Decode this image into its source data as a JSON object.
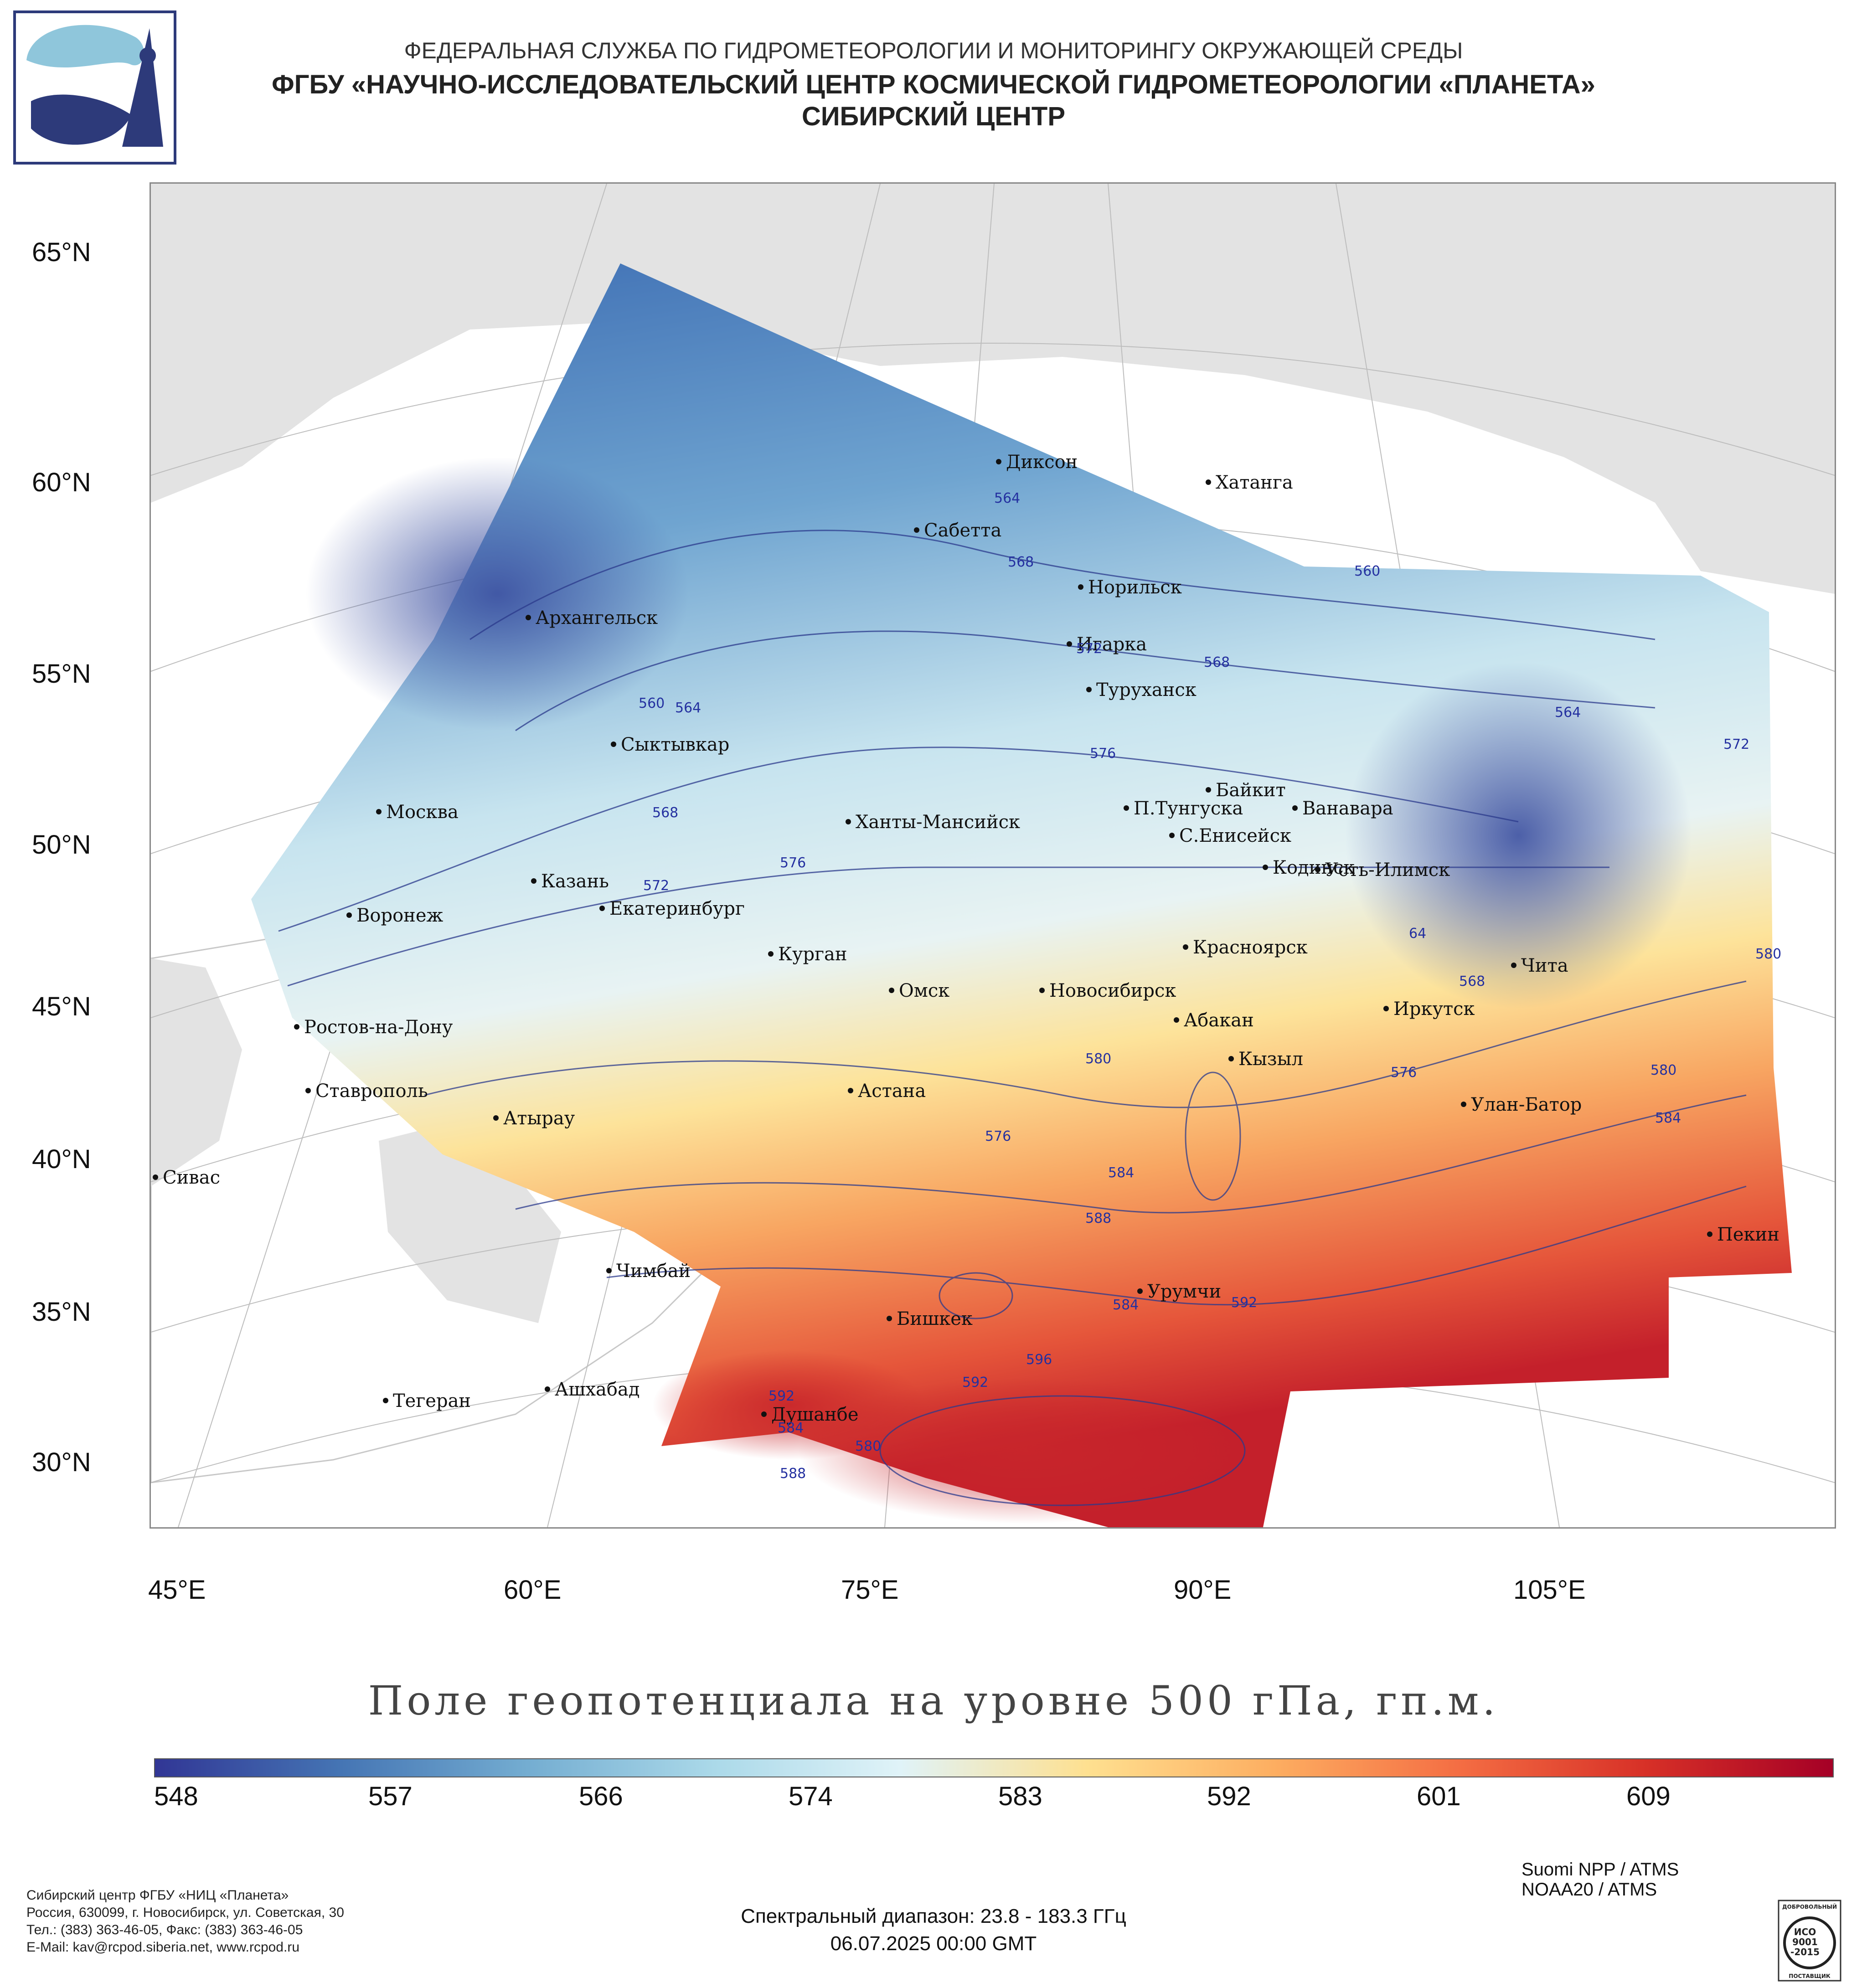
{
  "header": {
    "line1": "ФЕДЕРАЛЬНАЯ СЛУЖБА ПО ГИДРОМЕТЕОРОЛОГИИ И МОНИТОРИНГУ ОКРУЖАЮЩЕЙ СРЕДЫ",
    "line2": "ФГБУ «НАУЧНО-ИССЛЕДОВАТЕЛЬСКИЙ ЦЕНТР КОСМИЧЕСКОЙ ГИДРОМЕТЕОРОЛОГИИ «ПЛАНЕТА»",
    "line3": "СИБИРСКИЙ ЦЕНТР"
  },
  "map": {
    "lat_labels": [
      "65°N",
      "60°N",
      "55°N",
      "50°N",
      "45°N",
      "40°N",
      "35°N",
      "30°N"
    ],
    "lon_labels": [
      "45°E",
      "60°E",
      "75°E",
      "90°E",
      "105°E"
    ],
    "cities": [
      "Диксон",
      "Хатанга",
      "Сабетта",
      "Норильск",
      "Игарка",
      "Архангельск",
      "Туруханск",
      "Сыктывкар",
      "Байкит",
      "П.Тунгуска",
      "Ванавара",
      "Москва",
      "Ханты-Мансийск",
      "С.Енисейск",
      "Казань",
      "Кодинск",
      "Усть-Илимск",
      "Воронеж",
      "Екатеринбург",
      "Красноярск",
      "Курган",
      "Чита",
      "Омск",
      "Новосибирск",
      "Ростов-на-Дону",
      "Абакан",
      "Иркутск",
      "Кызыл",
      "Ставрополь",
      "Астана",
      "Улан-Батор",
      "Атырау",
      "Сивас",
      "Пекин",
      "Чимбай",
      "Урумчи",
      "Бишкек",
      "Ашхабад",
      "Тегеран",
      "Душанбе"
    ],
    "contour_labels": [
      "564",
      "568",
      "560",
      "572",
      "568",
      "560",
      "564",
      "576",
      "568",
      "572",
      "576",
      "572",
      "564",
      "568",
      "580",
      "576",
      "580",
      "584",
      "580",
      "576",
      "584",
      "588",
      "584",
      "592",
      "596",
      "592",
      "592",
      "584",
      "580",
      "588",
      "64"
    ]
  },
  "title": "Поле геопотенциала на уровне 500 гПа, гп.м.",
  "colorbar": {
    "ticks": [
      "548",
      "557",
      "566",
      "574",
      "583",
      "592",
      "601",
      "609"
    ],
    "colors": [
      "#313695",
      "#4575b4",
      "#74add1",
      "#abd9e9",
      "#e0f3f8",
      "#fee090",
      "#fdae61",
      "#f46d43",
      "#d73027",
      "#a50026"
    ]
  },
  "footer": {
    "org_lines": [
      "Сибирский центр ФГБУ «НИЦ «Планета»",
      "Россия, 630099, г. Новосибирск, ул. Советская, 30",
      "Тел.: (383) 363-46-05, Факс: (383) 363-46-05",
      "E-Mail: kav@rcpod.siberia.net, www.rcpod.ru"
    ],
    "spectral": "Спектральный диапазон: 23.8 - 183.3 ГГц",
    "datetime": "06.07.2025 00:00 GMT",
    "satellites": [
      "Suomi NPP / ATMS",
      "NOAA20 / ATMS"
    ],
    "iso_lines": [
      "ДОБРОВОЛЬНЫЙ",
      "ИСО",
      "9001",
      "-2015",
      "ПОСТАВЩИК"
    ]
  },
  "colors": {
    "land": "#e3e3e3",
    "background": "#ffffff",
    "contour": "#2b3a8c"
  }
}
